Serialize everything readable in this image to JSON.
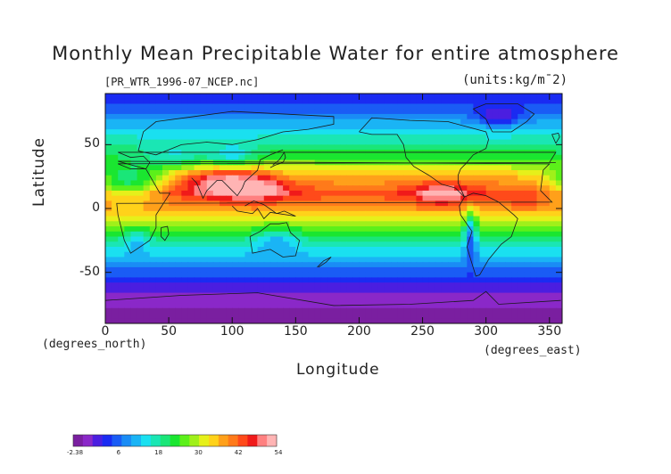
{
  "chart_data": {
    "type": "heatmap",
    "title": "Monthly Mean Precipitable Water for entire atmosphere",
    "subtitle_left": "[PR_WTR_1996-07_NCEP.nc]",
    "subtitle_right": "(units:kg/m¯2)",
    "xlabel": "Longitude",
    "ylabel": "Latitude",
    "x_unit_note": "(degrees_east)",
    "y_unit_note": "(degrees_north)",
    "xlim": [
      0,
      360
    ],
    "ylim": [
      -90,
      90
    ],
    "x_ticks": [
      "0",
      "50",
      "100",
      "150",
      "200",
      "250",
      "300",
      "350"
    ],
    "y_ticks": [
      "50",
      "0",
      "-50"
    ],
    "x_tick_values": [
      0,
      50,
      100,
      150,
      200,
      250,
      300,
      350
    ],
    "y_tick_values": [
      50,
      0,
      -50
    ],
    "colorbar": {
      "labels": [
        "-2.38",
        "6",
        "18",
        "30",
        "42",
        "54"
      ],
      "colors": [
        "#7a1fa0",
        "#8a28c8",
        "#4b1ee0",
        "#1a2bf2",
        "#1a5cf5",
        "#1a8cf5",
        "#1ab4f5",
        "#1ae0f0",
        "#1ae6b4",
        "#1ae678",
        "#1ae630",
        "#5cf01a",
        "#a0f01a",
        "#e6f01a",
        "#ffd21a",
        "#ffa01a",
        "#ff7a1a",
        "#ff4a1a",
        "#f01a1a",
        "#ff8080",
        "#ffb4b4"
      ]
    },
    "zonal_profile_description_by_latitude": [
      {
        "lat": 85,
        "value": 8
      },
      {
        "lat": 70,
        "value": 15
      },
      {
        "lat": 55,
        "value": 22
      },
      {
        "lat": 40,
        "value": 30
      },
      {
        "lat": 25,
        "value": 42
      },
      {
        "lat": 12,
        "value": 50
      },
      {
        "lat": 0,
        "value": 44
      },
      {
        "lat": -15,
        "value": 32
      },
      {
        "lat": -30,
        "value": 22
      },
      {
        "lat": -45,
        "value": 14
      },
      {
        "lat": -60,
        "value": 6
      },
      {
        "lat": -75,
        "value": 1
      },
      {
        "lat": -88,
        "value": -1
      }
    ]
  }
}
